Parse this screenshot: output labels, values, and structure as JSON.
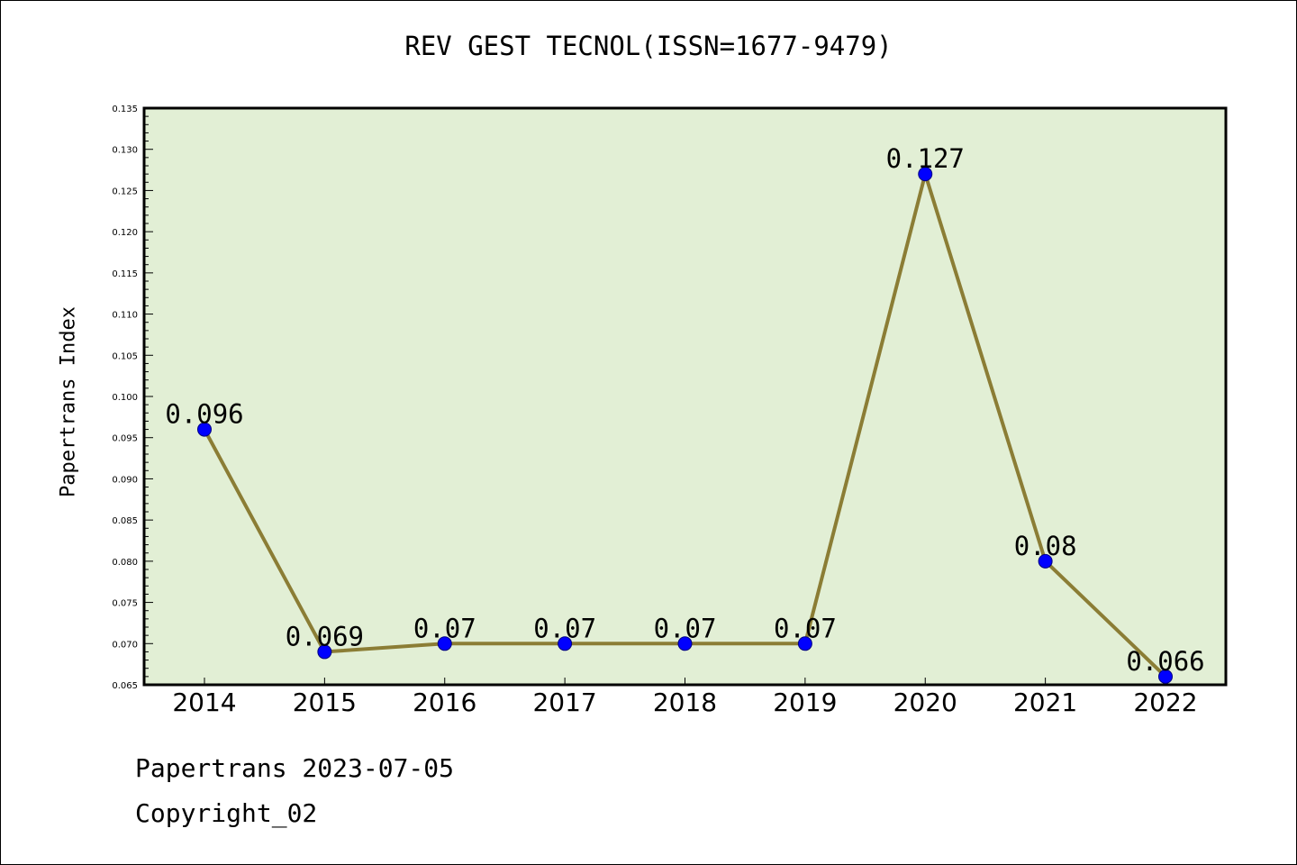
{
  "title": "REV GEST TECNOL(ISSN=1677-9479)",
  "footer": {
    "date_line": "Papertrans 2023-07-05",
    "copyright_line": "Copyright_02"
  },
  "colors": {
    "plot_background": "#e2efd5",
    "line": "#8b7d35",
    "marker": "#0000ff",
    "marker_edge": "#000080"
  },
  "chart_data": {
    "type": "line",
    "title": "REV GEST TECNOL(ISSN=1677-9479)",
    "xlabel": "",
    "ylabel": "Papertrans Index",
    "categories": [
      "2014",
      "2015",
      "2016",
      "2017",
      "2018",
      "2019",
      "2020",
      "2021",
      "2022"
    ],
    "series": [
      {
        "values": [
          0.096,
          0.069,
          0.07,
          0.07,
          0.07,
          0.07,
          0.127,
          0.08,
          0.066
        ],
        "data_labels": [
          "0.096",
          "0.069",
          "0.07",
          "0.07",
          "0.07",
          "0.07",
          "0.127",
          "0.08",
          "0.066"
        ]
      }
    ],
    "ylim": [
      0.065,
      0.135
    ],
    "yticks": [
      "0.065",
      "0.070",
      "0.075",
      "0.080",
      "0.085",
      "0.090",
      "0.095",
      "0.100",
      "0.105",
      "0.110",
      "0.115",
      "0.120",
      "0.125",
      "0.130",
      "0.135"
    ],
    "grid": false,
    "legend": "none"
  }
}
